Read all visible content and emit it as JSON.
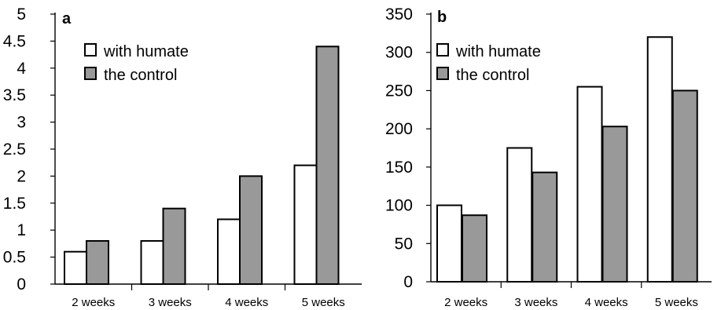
{
  "chart_data": [
    {
      "type": "bar",
      "panel_label": "a",
      "categories": [
        "2 weeks",
        "3 weeks",
        "4 weeks",
        "5 weeks"
      ],
      "series": [
        {
          "name": "with humate",
          "color": "#ffffff",
          "values": [
            0.6,
            0.8,
            1.2,
            2.2
          ]
        },
        {
          "name": "the control",
          "color": "#999999",
          "values": [
            0.8,
            1.4,
            2.0,
            4.4
          ]
        }
      ],
      "yticks": [
        "0",
        "0.5",
        "1",
        "1.5",
        "2",
        "2.5",
        "3",
        "3.5",
        "4",
        "4.5",
        "5"
      ],
      "ylim": [
        0,
        5
      ],
      "legend_position": "top-left",
      "grid": false
    },
    {
      "type": "bar",
      "panel_label": "b",
      "categories": [
        "2 weeks",
        "3 weeks",
        "4 weeks",
        "5 weeks"
      ],
      "series": [
        {
          "name": "with humate",
          "color": "#ffffff",
          "values": [
            100,
            175,
            255,
            320
          ]
        },
        {
          "name": "the control",
          "color": "#999999",
          "values": [
            87,
            143,
            203,
            250
          ]
        }
      ],
      "yticks": [
        "0",
        "50",
        "100",
        "150",
        "200",
        "250",
        "300",
        "350"
      ],
      "ylim": [
        0,
        350
      ],
      "legend_position": "top-left",
      "grid": false
    }
  ]
}
